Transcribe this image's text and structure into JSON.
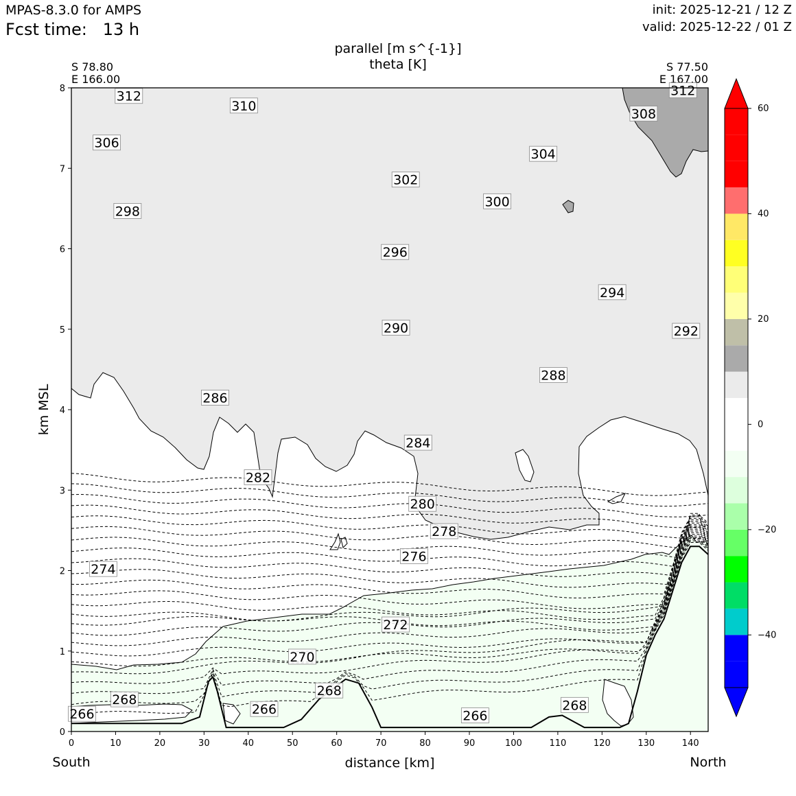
{
  "header": {
    "model": "MPAS-8.3.0 for AMPS",
    "fcst_label": "Fcst time:",
    "fcst_value": "13 h",
    "init": "init: 2025-12-21 / 12 Z",
    "valid": "valid: 2025-12-22 / 01 Z"
  },
  "titles": {
    "line1": "parallel [m s^{-1}]",
    "line2": "theta [K]"
  },
  "corners": {
    "left_lat": "S 78.80",
    "left_lon": "E 166.00",
    "right_lat": "S 77.50",
    "right_lon": "E 167.00"
  },
  "axes": {
    "xlabel": "distance [km]",
    "ylabel": "km MSL",
    "x_start_label": "South",
    "x_end_label": "North",
    "xlim": [
      0,
      144
    ],
    "ylim": [
      0,
      8
    ],
    "xticks": [
      0,
      10,
      20,
      30,
      40,
      50,
      60,
      70,
      80,
      90,
      100,
      110,
      120,
      130,
      140
    ],
    "yticks": [
      0,
      1,
      2,
      3,
      4,
      5,
      6,
      7,
      8
    ]
  },
  "colorbar": {
    "ticks": [
      60,
      40,
      20,
      0,
      -20,
      -40
    ],
    "tick_labels": [
      "60",
      "40",
      "20",
      "0",
      "−20",
      "−40"
    ],
    "bounds": [
      -50,
      -45,
      -40,
      -35,
      -30,
      -25,
      -20,
      -15,
      -10,
      -5,
      0,
      5,
      10,
      15,
      20,
      25,
      30,
      35,
      40,
      45,
      50,
      55,
      60
    ],
    "colors": [
      "#0000ff",
      "#0000ff",
      "#00cccc",
      "#00dd66",
      "#00ff00",
      "#66ff66",
      "#aaffaa",
      "#ddffdd",
      "#f3fff3",
      "#ffffff",
      "#ffffff",
      "#ebebeb",
      "#aaaaaa",
      "#bfbfa8",
      "#ffffaa",
      "#ffff77",
      "#ffff22",
      "#ffe866",
      "#ff6e6e",
      "#ff0000",
      "#ff0000",
      "#ff0000"
    ],
    "under_color": "#0000ff",
    "over_color": "#ff0000"
  },
  "chart_data": {
    "type": "cross-section contour",
    "fill_variable": "parallel [m s^{-1}]",
    "contour_variable": "theta [K]",
    "theta_levels": [
      266,
      268,
      270,
      272,
      274,
      276,
      278,
      280,
      282,
      284,
      286,
      288,
      290,
      292,
      294,
      296,
      298,
      300,
      302,
      304,
      306,
      308,
      310,
      312
    ],
    "theta_labels": [
      {
        "text": "312",
        "x": 13,
        "y": 7.9
      },
      {
        "text": "310",
        "x": 39,
        "y": 7.78
      },
      {
        "text": "306",
        "x": 8,
        "y": 7.32
      },
      {
        "text": "304",
        "x": 106.7,
        "y": 7.18
      },
      {
        "text": "302",
        "x": 75.6,
        "y": 6.86
      },
      {
        "text": "300",
        "x": 96.3,
        "y": 6.59
      },
      {
        "text": "298",
        "x": 12.7,
        "y": 6.47
      },
      {
        "text": "296",
        "x": 73.2,
        "y": 5.96
      },
      {
        "text": "294",
        "x": 122.3,
        "y": 5.46
      },
      {
        "text": "292",
        "x": 139,
        "y": 4.98
      },
      {
        "text": "290",
        "x": 73.4,
        "y": 5.02
      },
      {
        "text": "288",
        "x": 109,
        "y": 4.43
      },
      {
        "text": "286",
        "x": 32.5,
        "y": 4.15
      },
      {
        "text": "284",
        "x": 78.4,
        "y": 3.59
      },
      {
        "text": "282",
        "x": 42.2,
        "y": 3.16
      },
      {
        "text": "280",
        "x": 79.4,
        "y": 2.83
      },
      {
        "text": "278",
        "x": 84.3,
        "y": 2.49
      },
      {
        "text": "276",
        "x": 77.5,
        "y": 2.18
      },
      {
        "text": "274",
        "x": 7.2,
        "y": 2.02
      },
      {
        "text": "272",
        "x": 73.3,
        "y": 1.33
      },
      {
        "text": "270",
        "x": 52.2,
        "y": 0.93
      },
      {
        "text": "268",
        "x": 12,
        "y": 0.4
      },
      {
        "text": "268",
        "x": 58.3,
        "y": 0.51
      },
      {
        "text": "268",
        "x": 113.8,
        "y": 0.33
      },
      {
        "text": "266",
        "x": 2.4,
        "y": 0.22
      },
      {
        "text": "266",
        "x": 43.6,
        "y": 0.28
      },
      {
        "text": "266",
        "x": 91.3,
        "y": 0.2
      },
      {
        "text": "312",
        "x": 138.3,
        "y": 7.97
      },
      {
        "text": "308",
        "x": 129.4,
        "y": 7.68
      }
    ],
    "topography_km": [
      [
        0,
        0.1
      ],
      [
        10,
        0.1
      ],
      [
        25,
        0.1
      ],
      [
        29,
        0.18
      ],
      [
        31,
        0.62
      ],
      [
        32,
        0.68
      ],
      [
        33,
        0.5
      ],
      [
        35,
        0.05
      ],
      [
        48,
        0.05
      ],
      [
        52,
        0.15
      ],
      [
        56,
        0.4
      ],
      [
        62,
        0.65
      ],
      [
        65,
        0.6
      ],
      [
        68,
        0.3
      ],
      [
        70,
        0.05
      ],
      [
        80,
        0.05
      ],
      [
        104,
        0.05
      ],
      [
        108,
        0.18
      ],
      [
        111,
        0.2
      ],
      [
        116,
        0.05
      ],
      [
        124,
        0.05
      ],
      [
        126,
        0.1
      ],
      [
        128,
        0.5
      ],
      [
        130,
        0.95
      ],
      [
        132,
        1.2
      ],
      [
        134,
        1.4
      ],
      [
        136,
        1.75
      ],
      [
        138,
        2.1
      ],
      [
        140,
        2.3
      ],
      [
        142,
        2.3
      ],
      [
        144,
        2.2
      ]
    ]
  }
}
